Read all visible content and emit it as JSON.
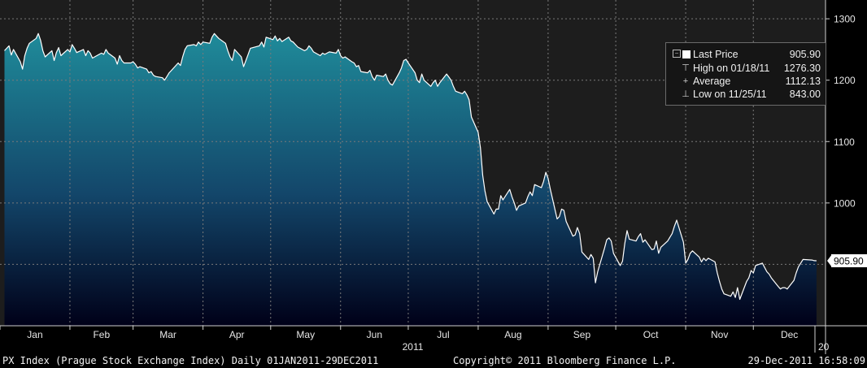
{
  "chart_data": {
    "type": "area",
    "title": "",
    "xlabel": "2011",
    "ylabel": "",
    "ylim": [
      800,
      1320
    ],
    "ytick_values": [
      1000,
      1100,
      1200,
      1300
    ],
    "ytick_labels": [
      "1000",
      "1100",
      "1200",
      "1300"
    ],
    "y_extra_tick_label": "",
    "months": [
      {
        "label": "Jan",
        "start": "2011-01-01"
      },
      {
        "label": "Feb",
        "start": "2011-02-01"
      },
      {
        "label": "Mar",
        "start": "2011-03-01"
      },
      {
        "label": "Apr",
        "start": "2011-04-01"
      },
      {
        "label": "May",
        "start": "2011-05-01"
      },
      {
        "label": "Jun",
        "start": "2011-06-01"
      },
      {
        "label": "Jul",
        "start": "2011-07-01"
      },
      {
        "label": "Aug",
        "start": "2011-08-01"
      },
      {
        "label": "Sep",
        "start": "2011-09-01"
      },
      {
        "label": "Oct",
        "start": "2011-10-01"
      },
      {
        "label": "Nov",
        "start": "2011-11-01"
      },
      {
        "label": "Dec",
        "start": "2011-12-01"
      }
    ],
    "year_label": "2011",
    "next_year_label": "20",
    "last_value_label": "905.90",
    "x_range": [
      "2011-01-01",
      "2012-01-02"
    ],
    "grid": true,
    "series": [
      {
        "points": [
          [
            "2011-01-03",
            1248
          ],
          [
            "2011-01-05",
            1256
          ],
          [
            "2011-01-06",
            1241
          ],
          [
            "2011-01-07",
            1250
          ],
          [
            "2011-01-10",
            1230
          ],
          [
            "2011-01-11",
            1218
          ],
          [
            "2011-01-12",
            1240
          ],
          [
            "2011-01-13",
            1252
          ],
          [
            "2011-01-14",
            1260
          ],
          [
            "2011-01-17",
            1268
          ],
          [
            "2011-01-18",
            1276
          ],
          [
            "2011-01-19",
            1265
          ],
          [
            "2011-01-20",
            1248
          ],
          [
            "2011-01-21",
            1238
          ],
          [
            "2011-01-24",
            1248
          ],
          [
            "2011-01-25",
            1232
          ],
          [
            "2011-01-26",
            1245
          ],
          [
            "2011-01-27",
            1253
          ],
          [
            "2011-01-28",
            1240
          ],
          [
            "2011-01-31",
            1250
          ],
          [
            "2011-02-01",
            1246
          ],
          [
            "2011-02-02",
            1258
          ],
          [
            "2011-02-03",
            1252
          ],
          [
            "2011-02-04",
            1245
          ],
          [
            "2011-02-07",
            1250
          ],
          [
            "2011-02-08",
            1240
          ],
          [
            "2011-02-09",
            1248
          ],
          [
            "2011-02-10",
            1244
          ],
          [
            "2011-02-11",
            1236
          ],
          [
            "2011-02-14",
            1242
          ],
          [
            "2011-02-15",
            1244
          ],
          [
            "2011-02-16",
            1242
          ],
          [
            "2011-02-17",
            1250
          ],
          [
            "2011-02-18",
            1244
          ],
          [
            "2011-02-21",
            1236
          ],
          [
            "2011-02-22",
            1226
          ],
          [
            "2011-02-23",
            1240
          ],
          [
            "2011-02-24",
            1232
          ],
          [
            "2011-02-25",
            1228
          ],
          [
            "2011-02-28",
            1228
          ],
          [
            "2011-03-01",
            1230
          ],
          [
            "2011-03-02",
            1226
          ],
          [
            "2011-03-03",
            1220
          ],
          [
            "2011-03-04",
            1222
          ],
          [
            "2011-03-07",
            1218
          ],
          [
            "2011-03-08",
            1212
          ],
          [
            "2011-03-09",
            1214
          ],
          [
            "2011-03-10",
            1208
          ],
          [
            "2011-03-11",
            1206
          ],
          [
            "2011-03-14",
            1204
          ],
          [
            "2011-03-15",
            1200
          ],
          [
            "2011-03-16",
            1206
          ],
          [
            "2011-03-17",
            1212
          ],
          [
            "2011-03-18",
            1216
          ],
          [
            "2011-03-21",
            1228
          ],
          [
            "2011-03-22",
            1224
          ],
          [
            "2011-03-23",
            1238
          ],
          [
            "2011-03-24",
            1250
          ],
          [
            "2011-03-25",
            1256
          ],
          [
            "2011-03-28",
            1258
          ],
          [
            "2011-03-29",
            1256
          ],
          [
            "2011-03-30",
            1262
          ],
          [
            "2011-03-31",
            1258
          ],
          [
            "2011-04-01",
            1262
          ],
          [
            "2011-04-04",
            1260
          ],
          [
            "2011-04-05",
            1270
          ],
          [
            "2011-04-06",
            1276
          ],
          [
            "2011-04-07",
            1272
          ],
          [
            "2011-04-08",
            1268
          ],
          [
            "2011-04-11",
            1260
          ],
          [
            "2011-04-12",
            1248
          ],
          [
            "2011-04-13",
            1238
          ],
          [
            "2011-04-14",
            1232
          ],
          [
            "2011-04-15",
            1250
          ],
          [
            "2011-04-18",
            1238
          ],
          [
            "2011-04-19",
            1222
          ],
          [
            "2011-04-20",
            1232
          ],
          [
            "2011-04-21",
            1242
          ],
          [
            "2011-04-22",
            1252
          ],
          [
            "2011-04-26",
            1256
          ],
          [
            "2011-04-27",
            1262
          ],
          [
            "2011-04-28",
            1254
          ],
          [
            "2011-04-29",
            1270
          ],
          [
            "2011-05-02",
            1266
          ],
          [
            "2011-05-03",
            1272
          ],
          [
            "2011-05-04",
            1264
          ],
          [
            "2011-05-05",
            1268
          ],
          [
            "2011-05-06",
            1263
          ],
          [
            "2011-05-09",
            1270
          ],
          [
            "2011-05-10",
            1264
          ],
          [
            "2011-05-11",
            1262
          ],
          [
            "2011-05-12",
            1258
          ],
          [
            "2011-05-13",
            1254
          ],
          [
            "2011-05-16",
            1248
          ],
          [
            "2011-05-17",
            1250
          ],
          [
            "2011-05-18",
            1256
          ],
          [
            "2011-05-19",
            1252
          ],
          [
            "2011-05-20",
            1246
          ],
          [
            "2011-05-23",
            1240
          ],
          [
            "2011-05-24",
            1244
          ],
          [
            "2011-05-25",
            1242
          ],
          [
            "2011-05-26",
            1244
          ],
          [
            "2011-05-27",
            1246
          ],
          [
            "2011-05-30",
            1244
          ],
          [
            "2011-05-31",
            1250
          ],
          [
            "2011-06-01",
            1240
          ],
          [
            "2011-06-02",
            1236
          ],
          [
            "2011-06-03",
            1238
          ],
          [
            "2011-06-06",
            1230
          ],
          [
            "2011-06-07",
            1228
          ],
          [
            "2011-06-08",
            1222
          ],
          [
            "2011-06-09",
            1224
          ],
          [
            "2011-06-10",
            1214
          ],
          [
            "2011-06-13",
            1212
          ],
          [
            "2011-06-14",
            1216
          ],
          [
            "2011-06-15",
            1206
          ],
          [
            "2011-06-16",
            1200
          ],
          [
            "2011-06-17",
            1208
          ],
          [
            "2011-06-20",
            1206
          ],
          [
            "2011-06-21",
            1210
          ],
          [
            "2011-06-22",
            1200
          ],
          [
            "2011-06-23",
            1194
          ],
          [
            "2011-06-24",
            1192
          ],
          [
            "2011-06-27",
            1212
          ],
          [
            "2011-06-28",
            1220
          ],
          [
            "2011-06-29",
            1232
          ],
          [
            "2011-06-30",
            1234
          ],
          [
            "2011-07-01",
            1228
          ],
          [
            "2011-07-04",
            1212
          ],
          [
            "2011-07-05",
            1200
          ],
          [
            "2011-07-06",
            1196
          ],
          [
            "2011-07-07",
            1210
          ],
          [
            "2011-07-08",
            1200
          ],
          [
            "2011-07-11",
            1190
          ],
          [
            "2011-07-12",
            1196
          ],
          [
            "2011-07-13",
            1200
          ],
          [
            "2011-07-14",
            1190
          ],
          [
            "2011-07-15",
            1196
          ],
          [
            "2011-07-18",
            1210
          ],
          [
            "2011-07-19",
            1205
          ],
          [
            "2011-07-20",
            1200
          ],
          [
            "2011-07-21",
            1190
          ],
          [
            "2011-07-22",
            1182
          ],
          [
            "2011-07-25",
            1178
          ],
          [
            "2011-07-26",
            1182
          ],
          [
            "2011-07-27",
            1176
          ],
          [
            "2011-07-28",
            1168
          ],
          [
            "2011-07-29",
            1140
          ],
          [
            "2011-08-01",
            1115
          ],
          [
            "2011-08-02",
            1090
          ],
          [
            "2011-08-03",
            1045
          ],
          [
            "2011-08-04",
            1020
          ],
          [
            "2011-08-05",
            1002
          ],
          [
            "2011-08-08",
            982
          ],
          [
            "2011-08-09",
            990
          ],
          [
            "2011-08-10",
            990
          ],
          [
            "2011-08-11",
            1012
          ],
          [
            "2011-08-12",
            1005
          ],
          [
            "2011-08-15",
            1022
          ],
          [
            "2011-08-16",
            1010
          ],
          [
            "2011-08-17",
            1000
          ],
          [
            "2011-08-18",
            988
          ],
          [
            "2011-08-19",
            995
          ],
          [
            "2011-08-22",
            1000
          ],
          [
            "2011-08-23",
            1010
          ],
          [
            "2011-08-24",
            1018
          ],
          [
            "2011-08-25",
            1012
          ],
          [
            "2011-08-26",
            1030
          ],
          [
            "2011-08-29",
            1025
          ],
          [
            "2011-08-30",
            1035
          ],
          [
            "2011-08-31",
            1050
          ],
          [
            "2011-09-01",
            1040
          ],
          [
            "2011-09-02",
            1022
          ],
          [
            "2011-09-05",
            974
          ],
          [
            "2011-09-06",
            978
          ],
          [
            "2011-09-07",
            990
          ],
          [
            "2011-09-08",
            988
          ],
          [
            "2011-09-09",
            970
          ],
          [
            "2011-09-12",
            946
          ],
          [
            "2011-09-13",
            948
          ],
          [
            "2011-09-14",
            960
          ],
          [
            "2011-09-15",
            950
          ],
          [
            "2011-09-16",
            920
          ],
          [
            "2011-09-19",
            908
          ],
          [
            "2011-09-20",
            916
          ],
          [
            "2011-09-21",
            910
          ],
          [
            "2011-09-22",
            870
          ],
          [
            "2011-09-23",
            888
          ],
          [
            "2011-09-26",
            926
          ],
          [
            "2011-09-27",
            940
          ],
          [
            "2011-09-28",
            943
          ],
          [
            "2011-09-29",
            938
          ],
          [
            "2011-09-30",
            918
          ],
          [
            "2011-10-03",
            898
          ],
          [
            "2011-10-04",
            905
          ],
          [
            "2011-10-05",
            934
          ],
          [
            "2011-10-06",
            955
          ],
          [
            "2011-10-07",
            941
          ],
          [
            "2011-10-10",
            938
          ],
          [
            "2011-10-11",
            945
          ],
          [
            "2011-10-12",
            950
          ],
          [
            "2011-10-13",
            936
          ],
          [
            "2011-10-14",
            940
          ],
          [
            "2011-10-17",
            924
          ],
          [
            "2011-10-18",
            925
          ],
          [
            "2011-10-19",
            938
          ],
          [
            "2011-10-20",
            918
          ],
          [
            "2011-10-21",
            928
          ],
          [
            "2011-10-24",
            938
          ],
          [
            "2011-10-25",
            944
          ],
          [
            "2011-10-26",
            950
          ],
          [
            "2011-10-27",
            962
          ],
          [
            "2011-10-28",
            972
          ],
          [
            "2011-10-31",
            936
          ],
          [
            "2011-11-01",
            902
          ],
          [
            "2011-11-02",
            908
          ],
          [
            "2011-11-03",
            918
          ],
          [
            "2011-11-04",
            922
          ],
          [
            "2011-11-07",
            912
          ],
          [
            "2011-11-08",
            904
          ],
          [
            "2011-11-09",
            910
          ],
          [
            "2011-11-10",
            906
          ],
          [
            "2011-11-11",
            910
          ],
          [
            "2011-11-14",
            904
          ],
          [
            "2011-11-15",
            886
          ],
          [
            "2011-11-16",
            872
          ],
          [
            "2011-11-17",
            860
          ],
          [
            "2011-11-18",
            852
          ],
          [
            "2011-11-21",
            848
          ],
          [
            "2011-11-22",
            855
          ],
          [
            "2011-11-23",
            846
          ],
          [
            "2011-11-24",
            862
          ],
          [
            "2011-11-25",
            843
          ],
          [
            "2011-11-28",
            872
          ],
          [
            "2011-11-29",
            878
          ],
          [
            "2011-11-30",
            890
          ],
          [
            "2011-12-01",
            886
          ],
          [
            "2011-12-02",
            898
          ],
          [
            "2011-12-05",
            902
          ],
          [
            "2011-12-06",
            895
          ],
          [
            "2011-12-07",
            888
          ],
          [
            "2011-12-08",
            884
          ],
          [
            "2011-12-09",
            878
          ],
          [
            "2011-12-12",
            864
          ],
          [
            "2011-12-13",
            860
          ],
          [
            "2011-12-14",
            862
          ],
          [
            "2011-12-15",
            862
          ],
          [
            "2011-12-16",
            860
          ],
          [
            "2011-12-19",
            874
          ],
          [
            "2011-12-20",
            886
          ],
          [
            "2011-12-21",
            896
          ],
          [
            "2011-12-22",
            902
          ],
          [
            "2011-12-23",
            908
          ],
          [
            "2011-12-27",
            907
          ],
          [
            "2011-12-28",
            906
          ],
          [
            "2011-12-29",
            905.9
          ]
        ]
      }
    ]
  },
  "legend": {
    "last_price_label": "Last Price",
    "last_price_value": "905.90",
    "high_label": "High on 01/18/11",
    "high_value": "1276.30",
    "average_label": "Average",
    "average_value": "1112.13",
    "low_label": "Low on 11/25/11",
    "low_value": "843.00"
  },
  "footer": {
    "left": "PX Index (Prague Stock Exchange Index)  Daily 01JAN2011-29DEC2011",
    "center": "Copyright© 2011 Bloomberg Finance L.P.",
    "right": "29-Dec-2011 16:58:09"
  },
  "colors": {
    "background": "#1d1d1d",
    "area_top": "#1f8b9a",
    "area_mid": "#13466a",
    "area_bottom": "#000018",
    "line": "#ffffff",
    "grid": "#7a7a7a",
    "axis_text": "#e6e6e6"
  }
}
